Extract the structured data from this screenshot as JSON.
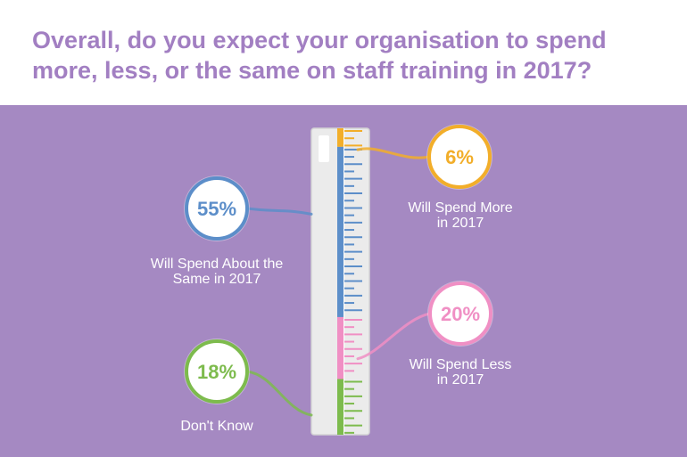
{
  "title": "Overall, do you expect your organisation to spend more, less, or the same on staff training in 2017?",
  "colors": {
    "header_bg": "#ffffff",
    "title": "#a27fc2",
    "panel_bg": "#a589c2",
    "ruler_body": "#ebebeb",
    "ruler_border": "#d4d4d4"
  },
  "chart_data": {
    "type": "bar",
    "orientation": "vertical-stacked-ruler",
    "title": "Overall, do you expect your organisation to spend more, less, or the same on staff training in 2017?",
    "unit": "%",
    "series": [
      {
        "key": "more",
        "value": 6,
        "pct_label": "6%",
        "label": "Will Spend More\nin 2017",
        "color": "#f2ae2a"
      },
      {
        "key": "same",
        "value": 55,
        "pct_label": "55%",
        "label": "Will Spend About the\nSame in 2017",
        "color": "#5c8ec9"
      },
      {
        "key": "less",
        "value": 20,
        "pct_label": "20%",
        "label": "Will Spend Less\nin 2017",
        "color": "#f08fc4"
      },
      {
        "key": "dont_know",
        "value": 18,
        "pct_label": "18%",
        "label": "Don't Know",
        "color": "#7dbb4d"
      }
    ]
  }
}
